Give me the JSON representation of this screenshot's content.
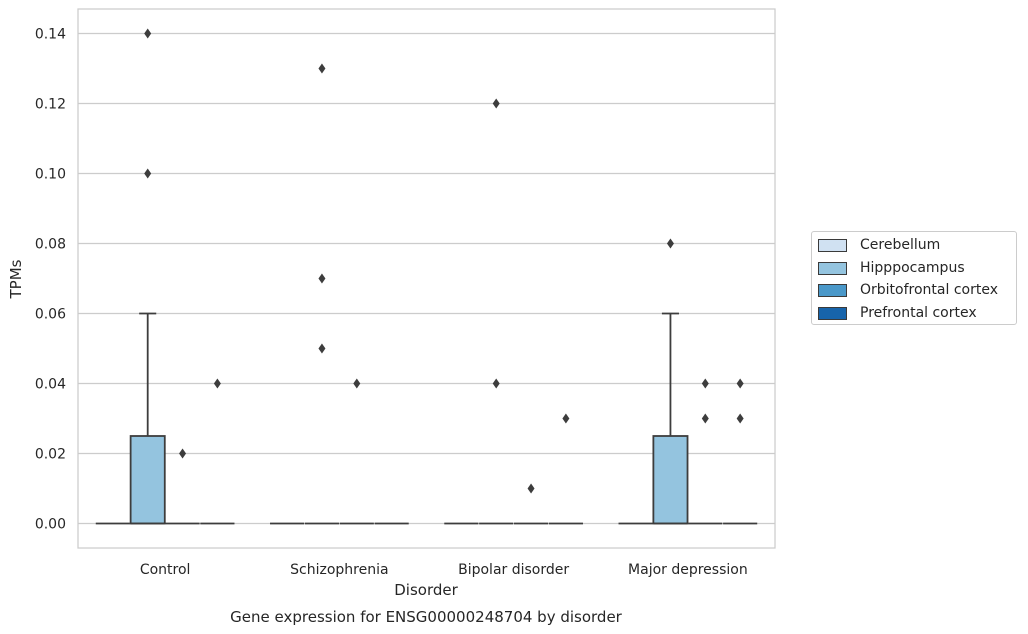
{
  "chart_data": {
    "type": "box",
    "title": "Gene expression for ENSG00000248704 by disorder",
    "xlabel": "Disorder",
    "ylabel": "TPMs",
    "ylim": [
      -0.007,
      0.147
    ],
    "yticks": [
      0.0,
      0.02,
      0.04,
      0.06,
      0.08,
      0.1,
      0.12,
      0.14
    ],
    "ytick_labels": [
      "0.00",
      "0.02",
      "0.04",
      "0.06",
      "0.08",
      "0.10",
      "0.12",
      "0.14"
    ],
    "grid": "horizontal",
    "legend_position": "right-outside",
    "categories": [
      "Control",
      "Schizophrenia",
      "Bipolar disorder",
      "Major depression"
    ],
    "series": [
      {
        "name": "Cerebellum",
        "color": "#d0e1f2",
        "boxes": [
          {
            "q1": 0,
            "median": 0,
            "q3": 0,
            "whisker_low": 0,
            "whisker_high": 0,
            "outliers": []
          },
          {
            "q1": 0,
            "median": 0,
            "q3": 0,
            "whisker_low": 0,
            "whisker_high": 0,
            "outliers": []
          },
          {
            "q1": 0,
            "median": 0,
            "q3": 0,
            "whisker_low": 0,
            "whisker_high": 0,
            "outliers": []
          },
          {
            "q1": 0,
            "median": 0,
            "q3": 0,
            "whisker_low": 0,
            "whisker_high": 0,
            "outliers": []
          }
        ]
      },
      {
        "name": "Hipppocampus",
        "color": "#94c4df",
        "boxes": [
          {
            "q1": 0,
            "median": 0,
            "q3": 0.025,
            "whisker_low": 0,
            "whisker_high": 0.06,
            "outliers": [
              0.1,
              0.14
            ]
          },
          {
            "q1": 0,
            "median": 0,
            "q3": 0,
            "whisker_low": 0,
            "whisker_high": 0,
            "outliers": [
              0.05,
              0.07,
              0.13
            ]
          },
          {
            "q1": 0,
            "median": 0,
            "q3": 0,
            "whisker_low": 0,
            "whisker_high": 0,
            "outliers": [
              0.04,
              0.12
            ]
          },
          {
            "q1": 0,
            "median": 0,
            "q3": 0.025,
            "whisker_low": 0,
            "whisker_high": 0.06,
            "outliers": [
              0.08
            ]
          }
        ]
      },
      {
        "name": "Orbitofrontal cortex",
        "color": "#4a98c9",
        "boxes": [
          {
            "q1": 0,
            "median": 0,
            "q3": 0,
            "whisker_low": 0,
            "whisker_high": 0,
            "outliers": [
              0.02
            ]
          },
          {
            "q1": 0,
            "median": 0,
            "q3": 0,
            "whisker_low": 0,
            "whisker_high": 0,
            "outliers": [
              0.04
            ]
          },
          {
            "q1": 0,
            "median": 0,
            "q3": 0,
            "whisker_low": 0,
            "whisker_high": 0,
            "outliers": [
              0.01
            ]
          },
          {
            "q1": 0,
            "median": 0,
            "q3": 0,
            "whisker_low": 0,
            "whisker_high": 0,
            "outliers": [
              0.03,
              0.04
            ]
          }
        ]
      },
      {
        "name": "Prefrontal cortex",
        "color": "#1764ab",
        "boxes": [
          {
            "q1": 0,
            "median": 0,
            "q3": 0,
            "whisker_low": 0,
            "whisker_high": 0,
            "outliers": [
              0.04
            ]
          },
          {
            "q1": 0,
            "median": 0,
            "q3": 0,
            "whisker_low": 0,
            "whisker_high": 0,
            "outliers": []
          },
          {
            "q1": 0,
            "median": 0,
            "q3": 0,
            "whisker_low": 0,
            "whisker_high": 0,
            "outliers": [
              0.03
            ]
          },
          {
            "q1": 0,
            "median": 0,
            "q3": 0,
            "whisker_low": 0,
            "whisker_high": 0,
            "outliers": [
              0.03,
              0.04
            ]
          }
        ]
      }
    ]
  }
}
